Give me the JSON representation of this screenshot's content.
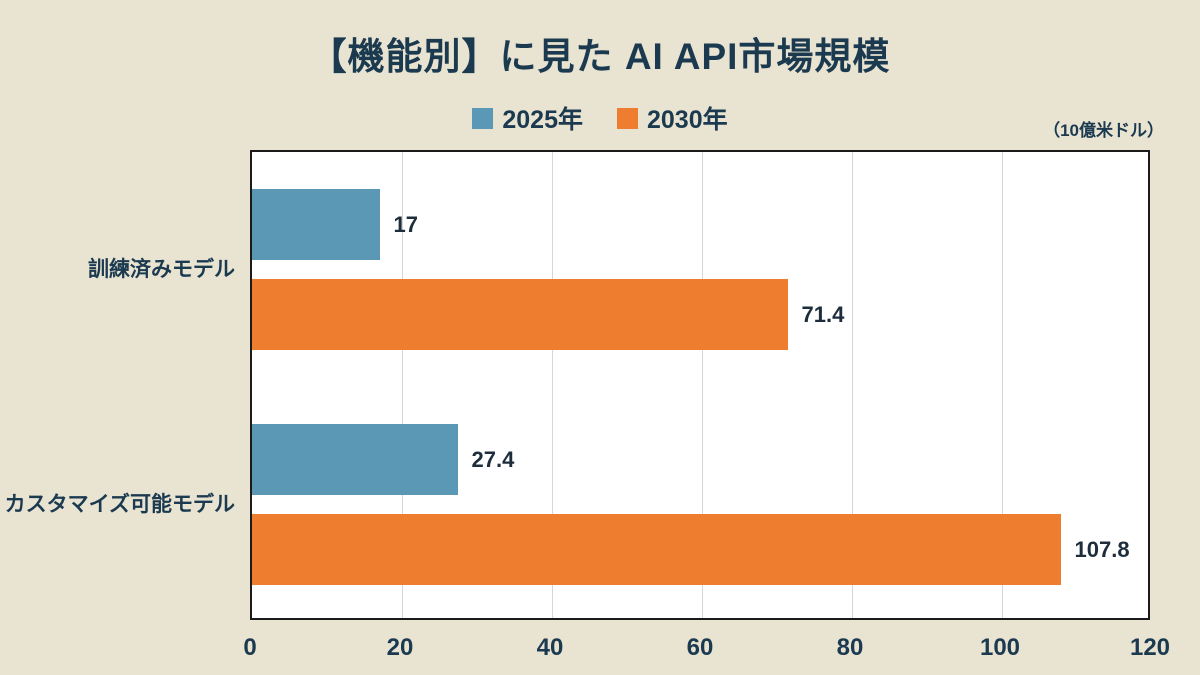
{
  "title": "【機能別】に見た AI API市場規模",
  "unit_label": "（10億米ドル）",
  "legend": [
    {
      "label": "2025年",
      "color": "#5b98b6"
    },
    {
      "label": "2030年",
      "color": "#ee7d30"
    }
  ],
  "colors": {
    "background": "#e9e3d1",
    "plot_background": "#ffffff",
    "plot_border": "#1a1a1a",
    "gridline": "#d6d6d6",
    "text": "#1b3a50"
  },
  "chart_data": {
    "type": "bar",
    "orientation": "horizontal",
    "title": "【機能別】に見た AI API市場規模",
    "unit": "10億米ドル",
    "categories": [
      "訓練済みモデル",
      "カスタマイズ可能モデル"
    ],
    "series": [
      {
        "name": "2025年",
        "color": "#5b98b6",
        "values": [
          17,
          27.4
        ]
      },
      {
        "name": "2030年",
        "color": "#ee7d30",
        "values": [
          71.4,
          107.8
        ]
      }
    ],
    "xlim": [
      0,
      120
    ],
    "xticks": [
      0,
      20,
      40,
      60,
      80,
      100,
      120
    ],
    "grid": true,
    "legend_position": "top"
  }
}
